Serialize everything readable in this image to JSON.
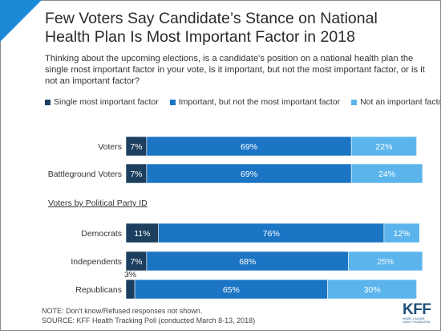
{
  "title": "Few Voters Say Candidate’s Stance on National Health Plan Is Most Important Factor in 2018",
  "subtitle": "Thinking about the upcoming elections, is a candidate's position on a national health plan the single most important factor in your vote, is it important, but not the most important factor, or is it not an important factor?",
  "notes": {
    "note": "NOTE: Don't know/Refused responses not shown.",
    "source": "SOURCE: KFF Health Tracking Poll (conducted March 8-13, 2018)"
  },
  "logo": {
    "text": "KFF",
    "sub1": "HENRY J KAISER",
    "sub2": "FAMILY FOUNDATION"
  },
  "colors": {
    "single": "#1c3f5f",
    "important": "#1b75c4",
    "not": "#5bb5ec",
    "corner": "#1c8ad6"
  },
  "chart_data": {
    "type": "bar",
    "orientation": "horizontal",
    "stacked": true,
    "xlim": [
      0,
      100
    ],
    "categories": [
      "Voters",
      "Battleground Voters",
      "Democrats",
      "Independents",
      "Republicans"
    ],
    "group_label": "Voters by Political Party ID",
    "group_label_before_category": "Democrats",
    "series": [
      {
        "name": "Single most important factor",
        "values": [
          7,
          7,
          11,
          7,
          3
        ],
        "labels": [
          "7%",
          "7%",
          "11%",
          "7%",
          "3%"
        ]
      },
      {
        "name": "Important, but not the most important factor",
        "values": [
          69,
          69,
          76,
          68,
          65
        ],
        "labels": [
          "69%",
          "69%",
          "76%",
          "68%",
          "65%"
        ]
      },
      {
        "name": "Not an important factor",
        "values": [
          22,
          24,
          12,
          25,
          30
        ],
        "labels": [
          "22%",
          "24%",
          "12%",
          "25%",
          "30%"
        ]
      }
    ],
    "legend_position": "top-left",
    "grid": false
  }
}
